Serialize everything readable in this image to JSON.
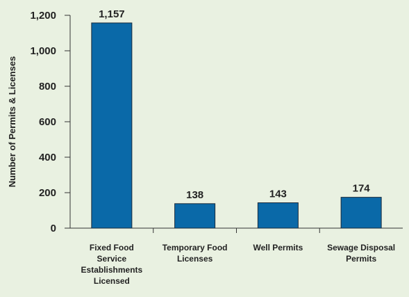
{
  "chart_data": {
    "type": "bar",
    "y_label": "Number of Permits & Licenses",
    "categories": [
      [
        "Fixed Food",
        "Service",
        "Establishments",
        "Licensed"
      ],
      [
        "Temporary Food",
        "Licenses"
      ],
      [
        "Well Permits"
      ],
      [
        "Sewage Disposal",
        "Permits"
      ]
    ],
    "values": [
      1157,
      138,
      143,
      174
    ],
    "value_labels": [
      "1,157",
      "138",
      "143",
      "174"
    ],
    "color": "#0a69a8",
    "ylim": [
      0,
      1200
    ],
    "yticks": [
      0,
      200,
      400,
      600,
      800,
      {
        "value": 1000,
        "label": "1,000"
      },
      {
        "value": 1200,
        "label": "1,200"
      }
    ],
    "grid": false
  }
}
